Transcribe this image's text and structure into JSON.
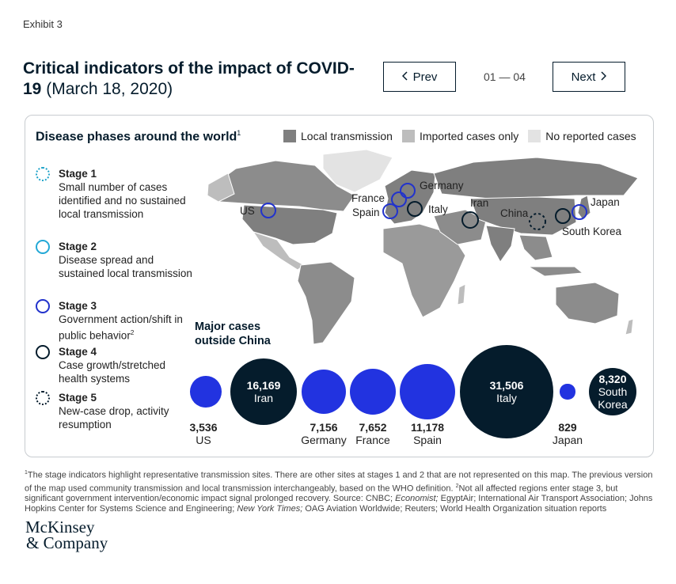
{
  "exhibit_label": "Exhibit 3",
  "title": {
    "main": "Critical indicators of the impact of COVID-19",
    "date": "(March 18, 2020)"
  },
  "nav": {
    "prev_label": "Prev",
    "next_label": "Next",
    "pager_current": "01",
    "pager_sep": "—",
    "pager_total": "04"
  },
  "panel": {
    "title": "Disease phases around the world",
    "title_note": "1"
  },
  "legend": [
    {
      "label": "Local transmission",
      "color": "#7f7f7f"
    },
    {
      "label": "Imported cases only",
      "color": "#bdbdbd"
    },
    {
      "label": "No reported cases",
      "color": "#e3e3e3"
    }
  ],
  "stages": [
    {
      "name": "Stage 1",
      "desc": "Small number of cases identified and no sustained local transmission",
      "ring_color": "#1fa3c9",
      "ring_style": "dotted"
    },
    {
      "name": "Stage 2",
      "desc": "Disease spread and sustained local transmission",
      "ring_color": "#23a8d6",
      "ring_style": "solid"
    },
    {
      "name": "Stage 3",
      "desc": "Government action/shift in public behavior",
      "desc_note": "2",
      "ring_color": "#2233cc",
      "ring_style": "solid"
    },
    {
      "name": "Stage 4",
      "desc": "Case growth/stretched health systems",
      "ring_color": "#051c2c",
      "ring_style": "solid"
    },
    {
      "name": "Stage 5",
      "desc": "New-case drop, activity resumption",
      "ring_color": "#051c2c",
      "ring_style": "dotted"
    }
  ],
  "map_labels": {
    "us": "US",
    "germany": "Germany",
    "france": "France",
    "spain": "Spain",
    "italy": "Italy",
    "iran": "Iran",
    "china": "China",
    "japan": "Japan",
    "south_korea": "South Korea"
  },
  "major_cases_title": "Major cases outside China",
  "major_cases": [
    {
      "country": "US",
      "cases": "3,536",
      "value": 3536,
      "color": "#2233e0",
      "label_inside": false
    },
    {
      "country": "Iran",
      "cases": "16,169",
      "value": 16169,
      "color": "#051c2c",
      "label_inside": true
    },
    {
      "country": "Germany",
      "cases": "7,156",
      "value": 7156,
      "color": "#2233e0",
      "label_inside": false
    },
    {
      "country": "France",
      "cases": "7,652",
      "value": 7652,
      "color": "#2233e0",
      "label_inside": false
    },
    {
      "country": "Spain",
      "cases": "11,178",
      "value": 11178,
      "color": "#2233e0",
      "label_inside": false
    },
    {
      "country": "Italy",
      "cases": "31,506",
      "value": 31506,
      "color": "#051c2c",
      "label_inside": true
    },
    {
      "country": "Japan",
      "cases": "829",
      "value": 829,
      "color": "#2233e0",
      "label_inside": false
    },
    {
      "country": "South Korea",
      "cases": "8,320",
      "value": 8320,
      "color": "#051c2c",
      "label_inside": true
    }
  ],
  "footnote": {
    "n1": "1",
    "text1": "The stage indicators highlight representative transmission sites. There are other sites at stages 1 and 2 that are not represented on this map. The previous version of the map used community transmission and local transmission interchangeably, based on the WHO definition. ",
    "n2": "2",
    "text2": "Not all affected regions enter stage 3, but significant government intervention/economic impact signal prolonged recovery. Source: CNBC; ",
    "economist": "Economist;",
    "text3": " EgyptAir; International Air Transport Association; Johns Hopkins Center for Systems Science and Engineering; ",
    "nyt": "New York Times;",
    "text4": " OAG Aviation Worldwide; Reuters; World Health Organization situation reports"
  },
  "logo": {
    "line1": "McKinsey",
    "line2": "& Company"
  }
}
